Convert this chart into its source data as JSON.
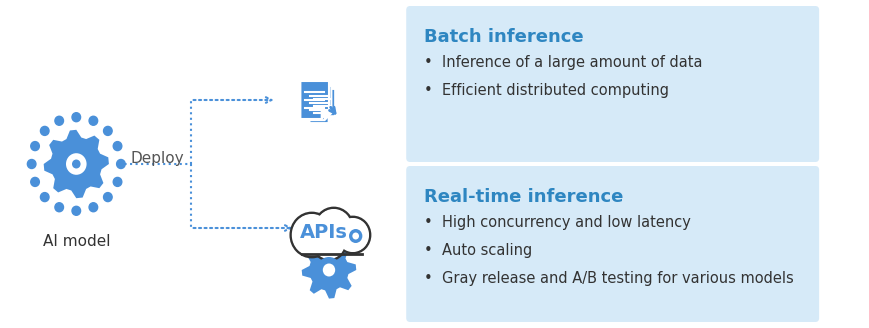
{
  "bg_color": "#ffffff",
  "box1_color": "#d6eaf8",
  "box2_color": "#d6eaf8",
  "title1": "Real-time inference",
  "title2": "Batch inference",
  "title_color": "#2e86c1",
  "bullet_color": "#333333",
  "bullet1": [
    "High concurrency and low latency",
    "Auto scaling",
    "Gray release and A/B testing for various models"
  ],
  "bullet2": [
    "Inference of a large amount of data",
    "Efficient distributed computing"
  ],
  "arrow_color": "#4a90d9",
  "gear_color": "#4a90d9",
  "cloud_color": "#333333",
  "deploy_label": "Deploy",
  "ai_label": "AI model",
  "apis_label": "APIs",
  "dotted_color": "#4a90d9",
  "title_fontsize": 13,
  "bullet_fontsize": 10.5,
  "label_fontsize": 11
}
